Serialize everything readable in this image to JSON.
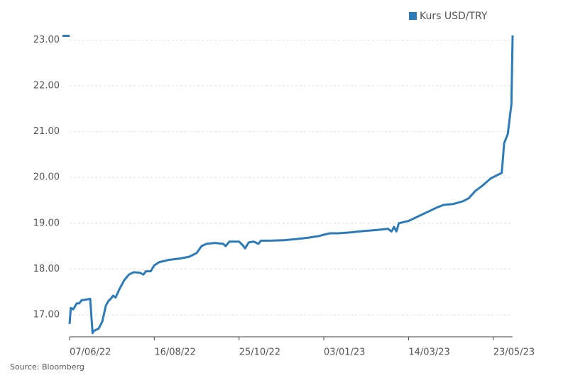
{
  "chart_data": {
    "type": "line",
    "legend_position": "top-right",
    "grid": true,
    "source": "Source: Bloomberg",
    "x": [
      "2022-06-07",
      "2022-06-08",
      "2022-06-10",
      "2022-06-13",
      "2022-06-15",
      "2022-06-17",
      "2022-06-20",
      "2022-06-24",
      "2022-06-26",
      "2022-06-27",
      "2022-07-01",
      "2022-07-04",
      "2022-07-07",
      "2022-07-09",
      "2022-07-11",
      "2022-07-13",
      "2022-07-15",
      "2022-07-18",
      "2022-07-22",
      "2022-07-26",
      "2022-07-30",
      "2022-08-04",
      "2022-08-07",
      "2022-08-09",
      "2022-08-13",
      "2022-08-16",
      "2022-08-20",
      "2022-08-28",
      "2022-09-06",
      "2022-09-14",
      "2022-09-20",
      "2022-09-24",
      "2022-09-28",
      "2022-10-05",
      "2022-10-12",
      "2022-10-14",
      "2022-10-17",
      "2022-10-25",
      "2022-10-28",
      "2022-10-30",
      "2022-11-02",
      "2022-11-06",
      "2022-11-10",
      "2022-11-12",
      "2022-11-20",
      "2022-12-01",
      "2022-12-10",
      "2022-12-20",
      "2022-12-30",
      "2023-01-03",
      "2023-01-08",
      "2023-01-15",
      "2023-01-25",
      "2023-02-05",
      "2023-02-15",
      "2023-02-25",
      "2023-02-28",
      "2023-03-02",
      "2023-03-04",
      "2023-03-06",
      "2023-03-14",
      "2023-03-22",
      "2023-03-30",
      "2023-04-07",
      "2023-04-12",
      "2023-04-20",
      "2023-04-28",
      "2023-05-03",
      "2023-05-08",
      "2023-05-14",
      "2023-05-21",
      "2023-05-30",
      "2023-06-01",
      "2023-06-04",
      "2023-06-07",
      "2023-06-08"
    ],
    "series": [
      {
        "name": "Kurs USD/TRY",
        "color": "#2b7bb9",
        "values": [
          16.8,
          17.15,
          17.12,
          17.25,
          17.25,
          17.32,
          17.33,
          17.35,
          16.6,
          16.65,
          16.7,
          16.85,
          17.2,
          17.3,
          17.35,
          17.42,
          17.38,
          17.55,
          17.75,
          17.88,
          17.93,
          17.92,
          17.88,
          17.95,
          17.95,
          18.08,
          18.15,
          18.2,
          18.23,
          18.27,
          18.35,
          18.5,
          18.55,
          18.57,
          18.55,
          18.5,
          18.6,
          18.6,
          18.52,
          18.45,
          18.58,
          18.6,
          18.55,
          18.62,
          18.62,
          18.63,
          18.65,
          18.68,
          18.72,
          18.75,
          18.78,
          18.78,
          18.8,
          18.83,
          18.85,
          18.88,
          18.82,
          18.92,
          18.82,
          19.0,
          19.05,
          19.15,
          19.25,
          19.35,
          19.4,
          19.42,
          19.48,
          19.55,
          19.7,
          19.82,
          19.98,
          20.1,
          20.75,
          20.95,
          21.6,
          23.1
        ]
      }
    ],
    "xlim": [
      "2022-06-07",
      "2023-06-08"
    ],
    "xticks": [
      {
        "value": "2022-06-07",
        "label": "07/06/22"
      },
      {
        "value": "2022-08-16",
        "label": "16/08/22"
      },
      {
        "value": "2022-10-25",
        "label": "25/10/22"
      },
      {
        "value": "2023-01-03",
        "label": "03/01/23"
      },
      {
        "value": "2023-03-14",
        "label": "14/03/23"
      },
      {
        "value": "2023-05-23",
        "label": "23/05/23"
      }
    ],
    "ylim": [
      16.52,
      23.1
    ],
    "yticks": [
      {
        "value": 17,
        "label": "17.00"
      },
      {
        "value": 18,
        "label": "18.00"
      },
      {
        "value": 19,
        "label": "19.00"
      },
      {
        "value": 20,
        "label": "20.00"
      },
      {
        "value": 21,
        "label": "21.00"
      },
      {
        "value": 22,
        "label": "22.00"
      },
      {
        "value": 23,
        "label": "23.00"
      }
    ]
  }
}
